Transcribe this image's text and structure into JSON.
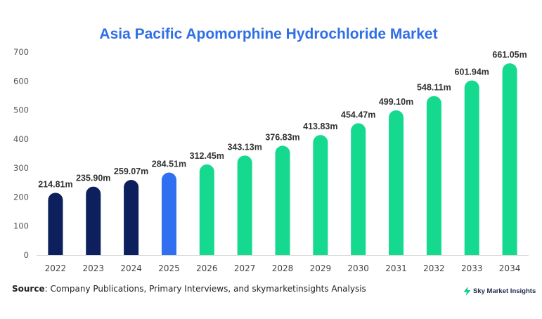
{
  "chart_data": {
    "type": "bar",
    "title": "Asia Pacific Apomorphine Hydrochloride Market",
    "xlabel": "",
    "ylabel": "",
    "ylim": [
      0,
      700
    ],
    "yticks": [
      "0",
      "100",
      "200",
      "300",
      "400",
      "500",
      "600",
      "700"
    ],
    "categories": [
      "2022",
      "2023",
      "2024",
      "2025",
      "2026",
      "2027",
      "2028",
      "2029",
      "2030",
      "2031",
      "2032",
      "2033",
      "2034"
    ],
    "values": [
      214.81,
      235.9,
      259.07,
      284.51,
      312.45,
      343.13,
      376.83,
      413.83,
      454.47,
      499.1,
      548.11,
      601.94,
      661.05
    ],
    "data_labels": [
      "214.81m",
      "235.90m",
      "259.07m",
      "284.51m",
      "312.45m",
      "343.13m",
      "376.83m",
      "413.83m",
      "454.47m",
      "499.10m",
      "548.11m",
      "601.94m",
      "661.05m"
    ],
    "bar_colors": [
      "#0d1f5c",
      "#0d1f5c",
      "#0d1f5c",
      "#2f6ff0",
      "#14d98e",
      "#14d98e",
      "#14d98e",
      "#14d98e",
      "#14d98e",
      "#14d98e",
      "#14d98e",
      "#14d98e",
      "#14d98e"
    ],
    "grid": false,
    "legend": "none"
  },
  "footer": {
    "source_label": "Source",
    "source_text": ": Company Publications, Primary Interviews, and skymarketinsights Analysis",
    "logo_text": "Sky Market Insights",
    "logo_icon": "lightning-icon"
  },
  "colors": {
    "title": "#2f6fe6",
    "historical": "#0d1f5c",
    "base_year": "#2f6ff0",
    "forecast": "#14d98e"
  }
}
